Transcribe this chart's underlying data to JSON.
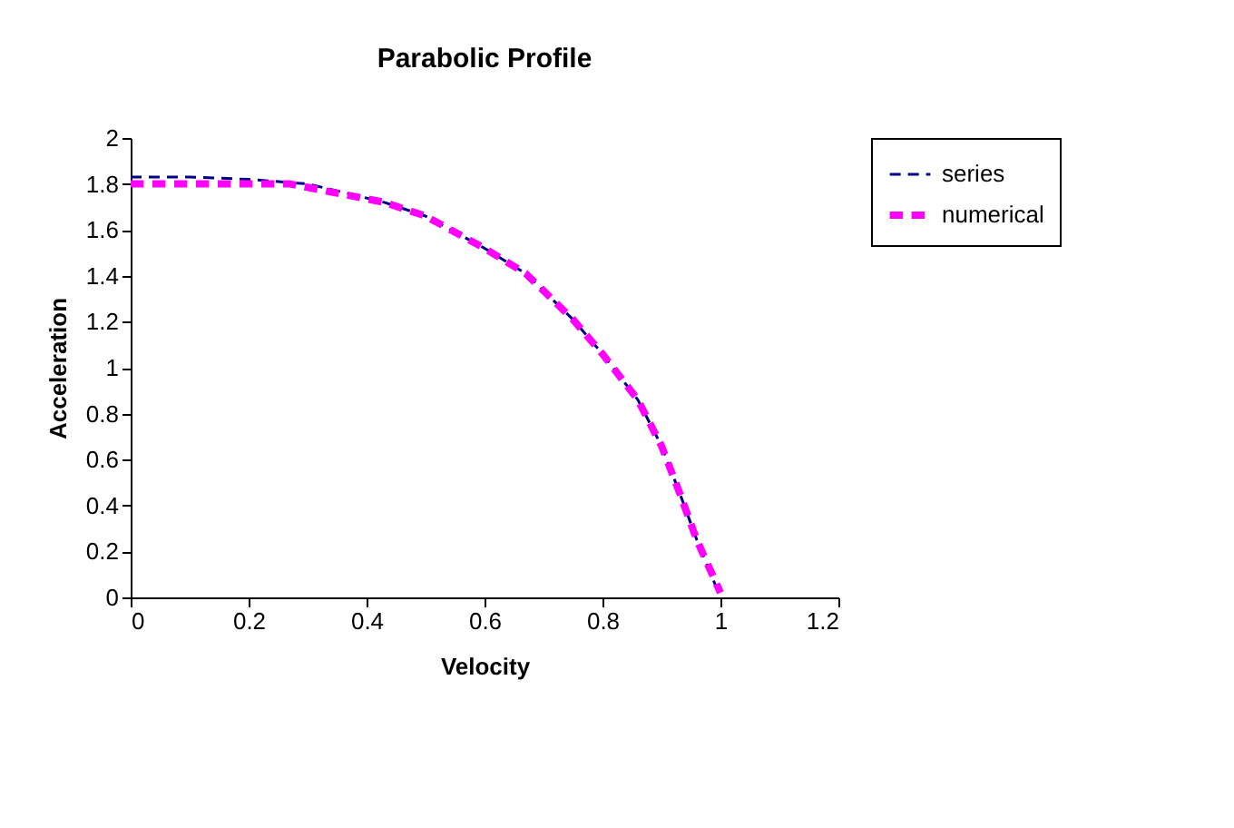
{
  "chart_data": {
    "type": "line",
    "title": "Parabolic Profile",
    "xlabel": "Velocity",
    "ylabel": "Acceleration",
    "xlim": [
      0,
      1.2
    ],
    "xticks": [
      0,
      0.2,
      0.4,
      0.6,
      0.8,
      1,
      1.2
    ],
    "ylim": [
      0,
      2
    ],
    "yticks": [
      0,
      0.2,
      0.4,
      0.6,
      0.8,
      1,
      1.2,
      1.4,
      1.6,
      1.8,
      2
    ],
    "grid": false,
    "legend": "right",
    "line_style": "dashed",
    "marker": "none",
    "series": [
      {
        "name": "series",
        "color": "#000080",
        "x": [
          0,
          0.1,
          0.2,
          0.25,
          0.3,
          0.35,
          0.43,
          0.5,
          0.6,
          0.67,
          0.75,
          0.8,
          0.86,
          0.9,
          0.93,
          0.96,
          1.0
        ],
        "values": [
          1.83,
          1.83,
          1.82,
          1.81,
          1.8,
          1.77,
          1.72,
          1.66,
          1.52,
          1.41,
          1.21,
          1.06,
          0.86,
          0.66,
          0.46,
          0.25,
          0.0
        ]
      },
      {
        "name": "numerical",
        "color": "#ff00ff",
        "x": [
          0,
          0.1,
          0.2,
          0.27,
          0.33,
          0.43,
          0.5,
          0.6,
          0.67,
          0.75,
          0.8,
          0.86,
          0.9,
          0.93,
          0.96,
          1.0
        ],
        "values": [
          1.8,
          1.8,
          1.8,
          1.8,
          1.77,
          1.72,
          1.66,
          1.52,
          1.41,
          1.21,
          1.06,
          0.86,
          0.66,
          0.46,
          0.25,
          0.02
        ]
      }
    ]
  }
}
